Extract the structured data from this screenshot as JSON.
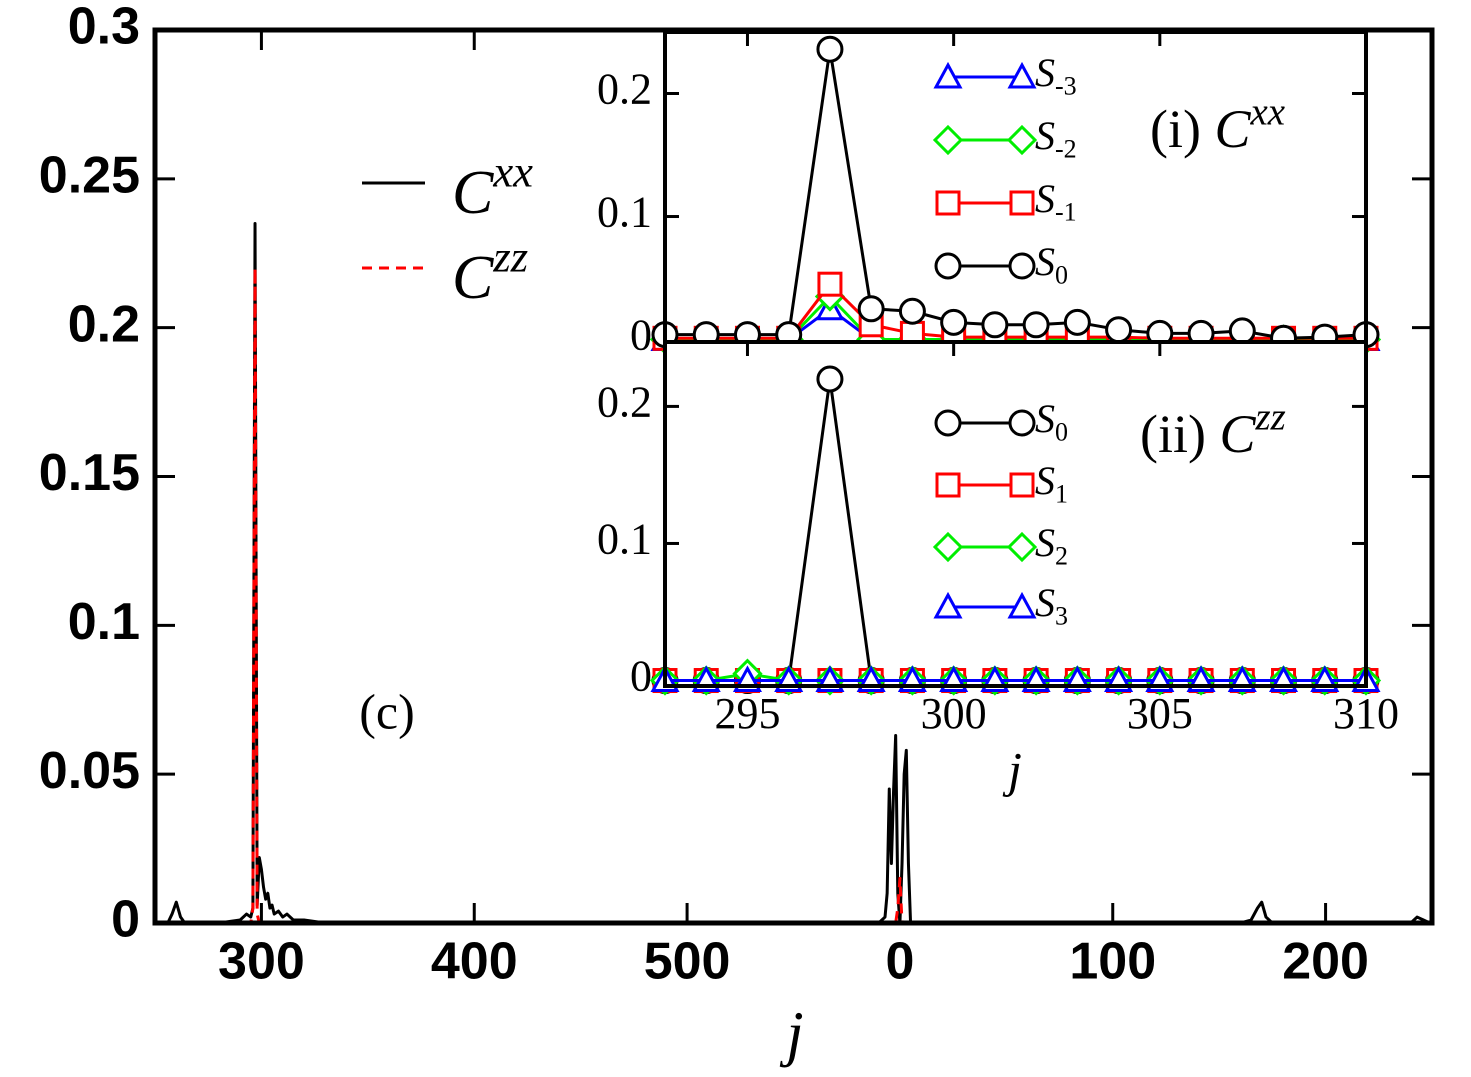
{
  "chart_data": [
    {
      "type": "line",
      "xlabel": "j",
      "annotation": "(c)",
      "x": [
        252,
        256,
        258,
        260,
        262,
        264,
        270,
        280,
        290,
        293,
        295,
        296,
        297,
        298,
        299,
        300,
        301,
        302,
        303,
        304,
        305,
        306,
        308,
        310,
        312,
        315,
        320,
        330,
        400,
        500,
        580,
        590,
        593,
        594,
        595,
        596,
        597,
        598,
        599,
        600,
        601,
        602,
        603,
        604,
        605,
        606,
        610,
        650,
        700,
        760,
        765,
        768,
        770,
        772,
        775,
        800,
        840,
        843,
        846,
        849
      ],
      "xlim": [
        250,
        850
      ],
      "xticks": [
        300,
        400,
        500,
        {
          "value": 600,
          "label": "0"
        },
        {
          "value": 700,
          "label": "100"
        },
        {
          "value": 800,
          "label": "200"
        }
      ],
      "ylim": [
        0,
        0.3
      ],
      "yticks": [
        0,
        0.05,
        0.1,
        0.15,
        0.2,
        0.25,
        0.3
      ],
      "series": [
        {
          "name": "Cxx",
          "color": "#000000",
          "dash": "solid",
          "values": [
            0,
            0,
            0.003,
            0.007,
            0.002,
            0,
            0,
            0,
            0.001,
            0.003,
            0.002,
            0.005,
            0.235,
            0.006,
            0.022,
            0.018,
            0.012,
            0.008,
            0.01,
            0.005,
            0.006,
            0.003,
            0.004,
            0.002,
            0.003,
            0.001,
            0.001,
            0,
            0,
            0,
            0,
            0,
            0.002,
            0.01,
            0.045,
            0.02,
            0.044,
            0.063,
            0.01,
            0,
            0.02,
            0.05,
            0.058,
            0.02,
            0,
            0,
            0,
            0,
            0,
            0,
            0.001,
            0.005,
            0.007,
            0.002,
            0,
            0,
            0,
            0.002,
            0.001,
            0
          ]
        },
        {
          "name": "Czz",
          "color": "#ff0000",
          "dash": "dashed",
          "values": [
            0,
            0,
            0,
            0,
            0,
            0,
            0,
            0,
            0,
            0,
            0,
            0.005,
            0.22,
            0.003,
            0,
            0,
            0,
            0,
            0,
            0,
            0,
            0,
            0,
            0,
            0,
            0,
            0,
            0,
            0,
            0,
            0,
            0,
            0,
            0,
            0,
            0,
            0,
            0,
            0.005,
            0.015,
            0,
            0,
            0,
            0,
            0,
            0,
            0,
            0,
            0,
            0,
            0,
            0,
            0,
            0,
            0,
            0,
            0,
            0,
            0,
            0
          ]
        }
      ]
    },
    {
      "type": "line",
      "annotation": "(i) Cxx",
      "x": [
        293,
        294,
        295,
        296,
        297,
        298,
        299,
        300,
        301,
        302,
        303,
        304,
        305,
        306,
        307,
        308,
        309,
        310
      ],
      "xlim": [
        293,
        310
      ],
      "xticks": [
        295,
        300,
        305,
        310
      ],
      "ylim": [
        -0.002,
        0.25
      ],
      "yticks": [
        0,
        0.1,
        0.2
      ],
      "series": [
        {
          "name": "S-3",
          "color": "#0000ff",
          "marker": "triangle",
          "values": [
            0,
            0,
            0,
            0,
            0.025,
            0,
            0,
            0,
            0,
            0,
            0,
            0,
            0,
            0,
            0,
            0,
            0,
            0
          ]
        },
        {
          "name": "S-2",
          "color": "#00ee00",
          "marker": "diamond",
          "values": [
            0,
            0,
            0,
            0,
            0.035,
            0,
            0,
            0,
            0,
            0,
            0,
            0,
            0,
            0,
            0,
            0,
            0,
            0
          ]
        },
        {
          "name": "S-1",
          "color": "#ff0000",
          "marker": "square",
          "values": [
            0.001,
            0.001,
            0.001,
            0.001,
            0.045,
            0.012,
            0.005,
            0.002,
            0.002,
            0.002,
            0.002,
            0.002,
            0.001,
            0.001,
            0.001,
            0.001,
            0.001,
            0.001
          ]
        },
        {
          "name": "S0",
          "color": "#000000",
          "marker": "circle",
          "values": [
            0.004,
            0.004,
            0.004,
            0.004,
            0.236,
            0.025,
            0.023,
            0.014,
            0.012,
            0.012,
            0.014,
            0.008,
            0.005,
            0.005,
            0.007,
            0.001,
            0.002,
            0.004
          ]
        }
      ]
    },
    {
      "type": "line",
      "xlabel": "j",
      "annotation": "(ii) Czz",
      "x": [
        293,
        294,
        295,
        296,
        297,
        298,
        299,
        300,
        301,
        302,
        303,
        304,
        305,
        306,
        307,
        308,
        309,
        310
      ],
      "xlim": [
        293,
        310
      ],
      "xticks": [
        295,
        300,
        305,
        310
      ],
      "ylim": [
        -0.004,
        0.247
      ],
      "yticks": [
        0,
        0.1,
        0.2
      ],
      "series": [
        {
          "name": "S0",
          "color": "#000000",
          "marker": "circle",
          "values": [
            0,
            0,
            0,
            0,
            0.22,
            0,
            0,
            0,
            0,
            0,
            0,
            0,
            0,
            0,
            0,
            0,
            0,
            0
          ]
        },
        {
          "name": "S1",
          "color": "#ff0000",
          "marker": "square",
          "values": [
            0,
            0,
            0,
            0,
            0,
            0,
            0,
            0,
            0,
            0,
            0,
            0,
            0,
            0,
            0,
            0,
            0,
            0
          ]
        },
        {
          "name": "S2",
          "color": "#00ee00",
          "marker": "diamond",
          "values": [
            0,
            0,
            0.005,
            0,
            0,
            0,
            0,
            0,
            0,
            0,
            0,
            0,
            0,
            0,
            0,
            0,
            0,
            0
          ]
        },
        {
          "name": "S3",
          "color": "#0000ff",
          "marker": "triangle",
          "values": [
            0,
            0,
            0,
            0,
            0,
            0,
            0,
            0,
            0,
            0,
            0,
            0,
            0,
            0,
            0,
            0,
            0,
            0
          ]
        }
      ]
    }
  ]
}
